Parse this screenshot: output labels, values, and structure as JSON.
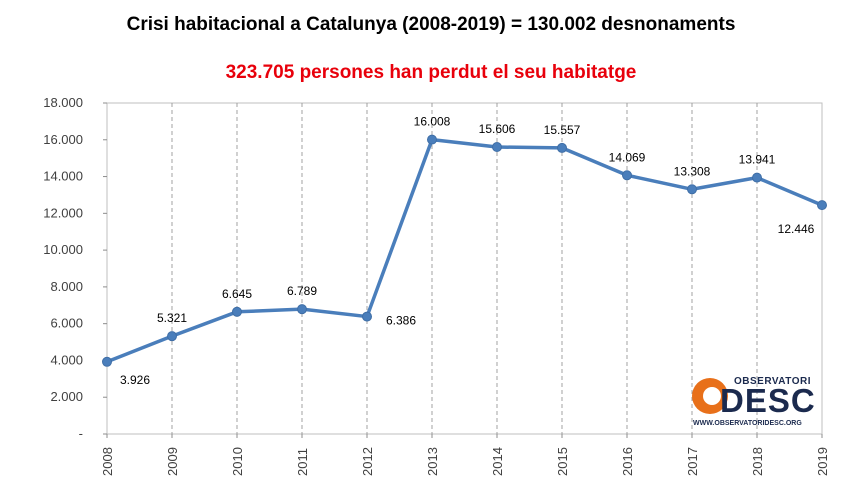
{
  "title": "Crisi habitacional a Catalunya (2008-2019) = 130.002 desnonaments",
  "subtitle": "323.705 persones  han perdut el seu habitatge",
  "logo": {
    "top_text": "OBSERVATORI",
    "main_text": "DESC",
    "url": "WWW.OBSERVATORIDESC.ORG",
    "colors": {
      "orange": "#e8701a",
      "navy": "#1b2a4e"
    }
  },
  "chart_data": {
    "type": "line",
    "categories": [
      "2008",
      "2009",
      "2010",
      "2011",
      "2012",
      "2013",
      "2014",
      "2015",
      "2016",
      "2017",
      "2018",
      "2019"
    ],
    "values": [
      3926,
      5321,
      6645,
      6789,
      6386,
      16008,
      15606,
      15557,
      14069,
      13308,
      13941,
      12446
    ],
    "data_labels": [
      "3.926",
      "5.321",
      "6.645",
      "6.789",
      "6.386",
      "16.008",
      "15.606",
      "15.557",
      "14.069",
      "13.308",
      "13.941",
      "12.446"
    ],
    "ylim": [
      0,
      18000
    ],
    "yticks": [
      0,
      2000,
      4000,
      6000,
      8000,
      10000,
      12000,
      14000,
      16000,
      18000
    ],
    "ytick_labels": [
      "-",
      "2.000",
      "4.000",
      "6.000",
      "8.000",
      "10.000",
      "12.000",
      "14.000",
      "16.000",
      "18.000"
    ],
    "grid": "vertical dashed",
    "line_color": "#4a7ebb"
  }
}
